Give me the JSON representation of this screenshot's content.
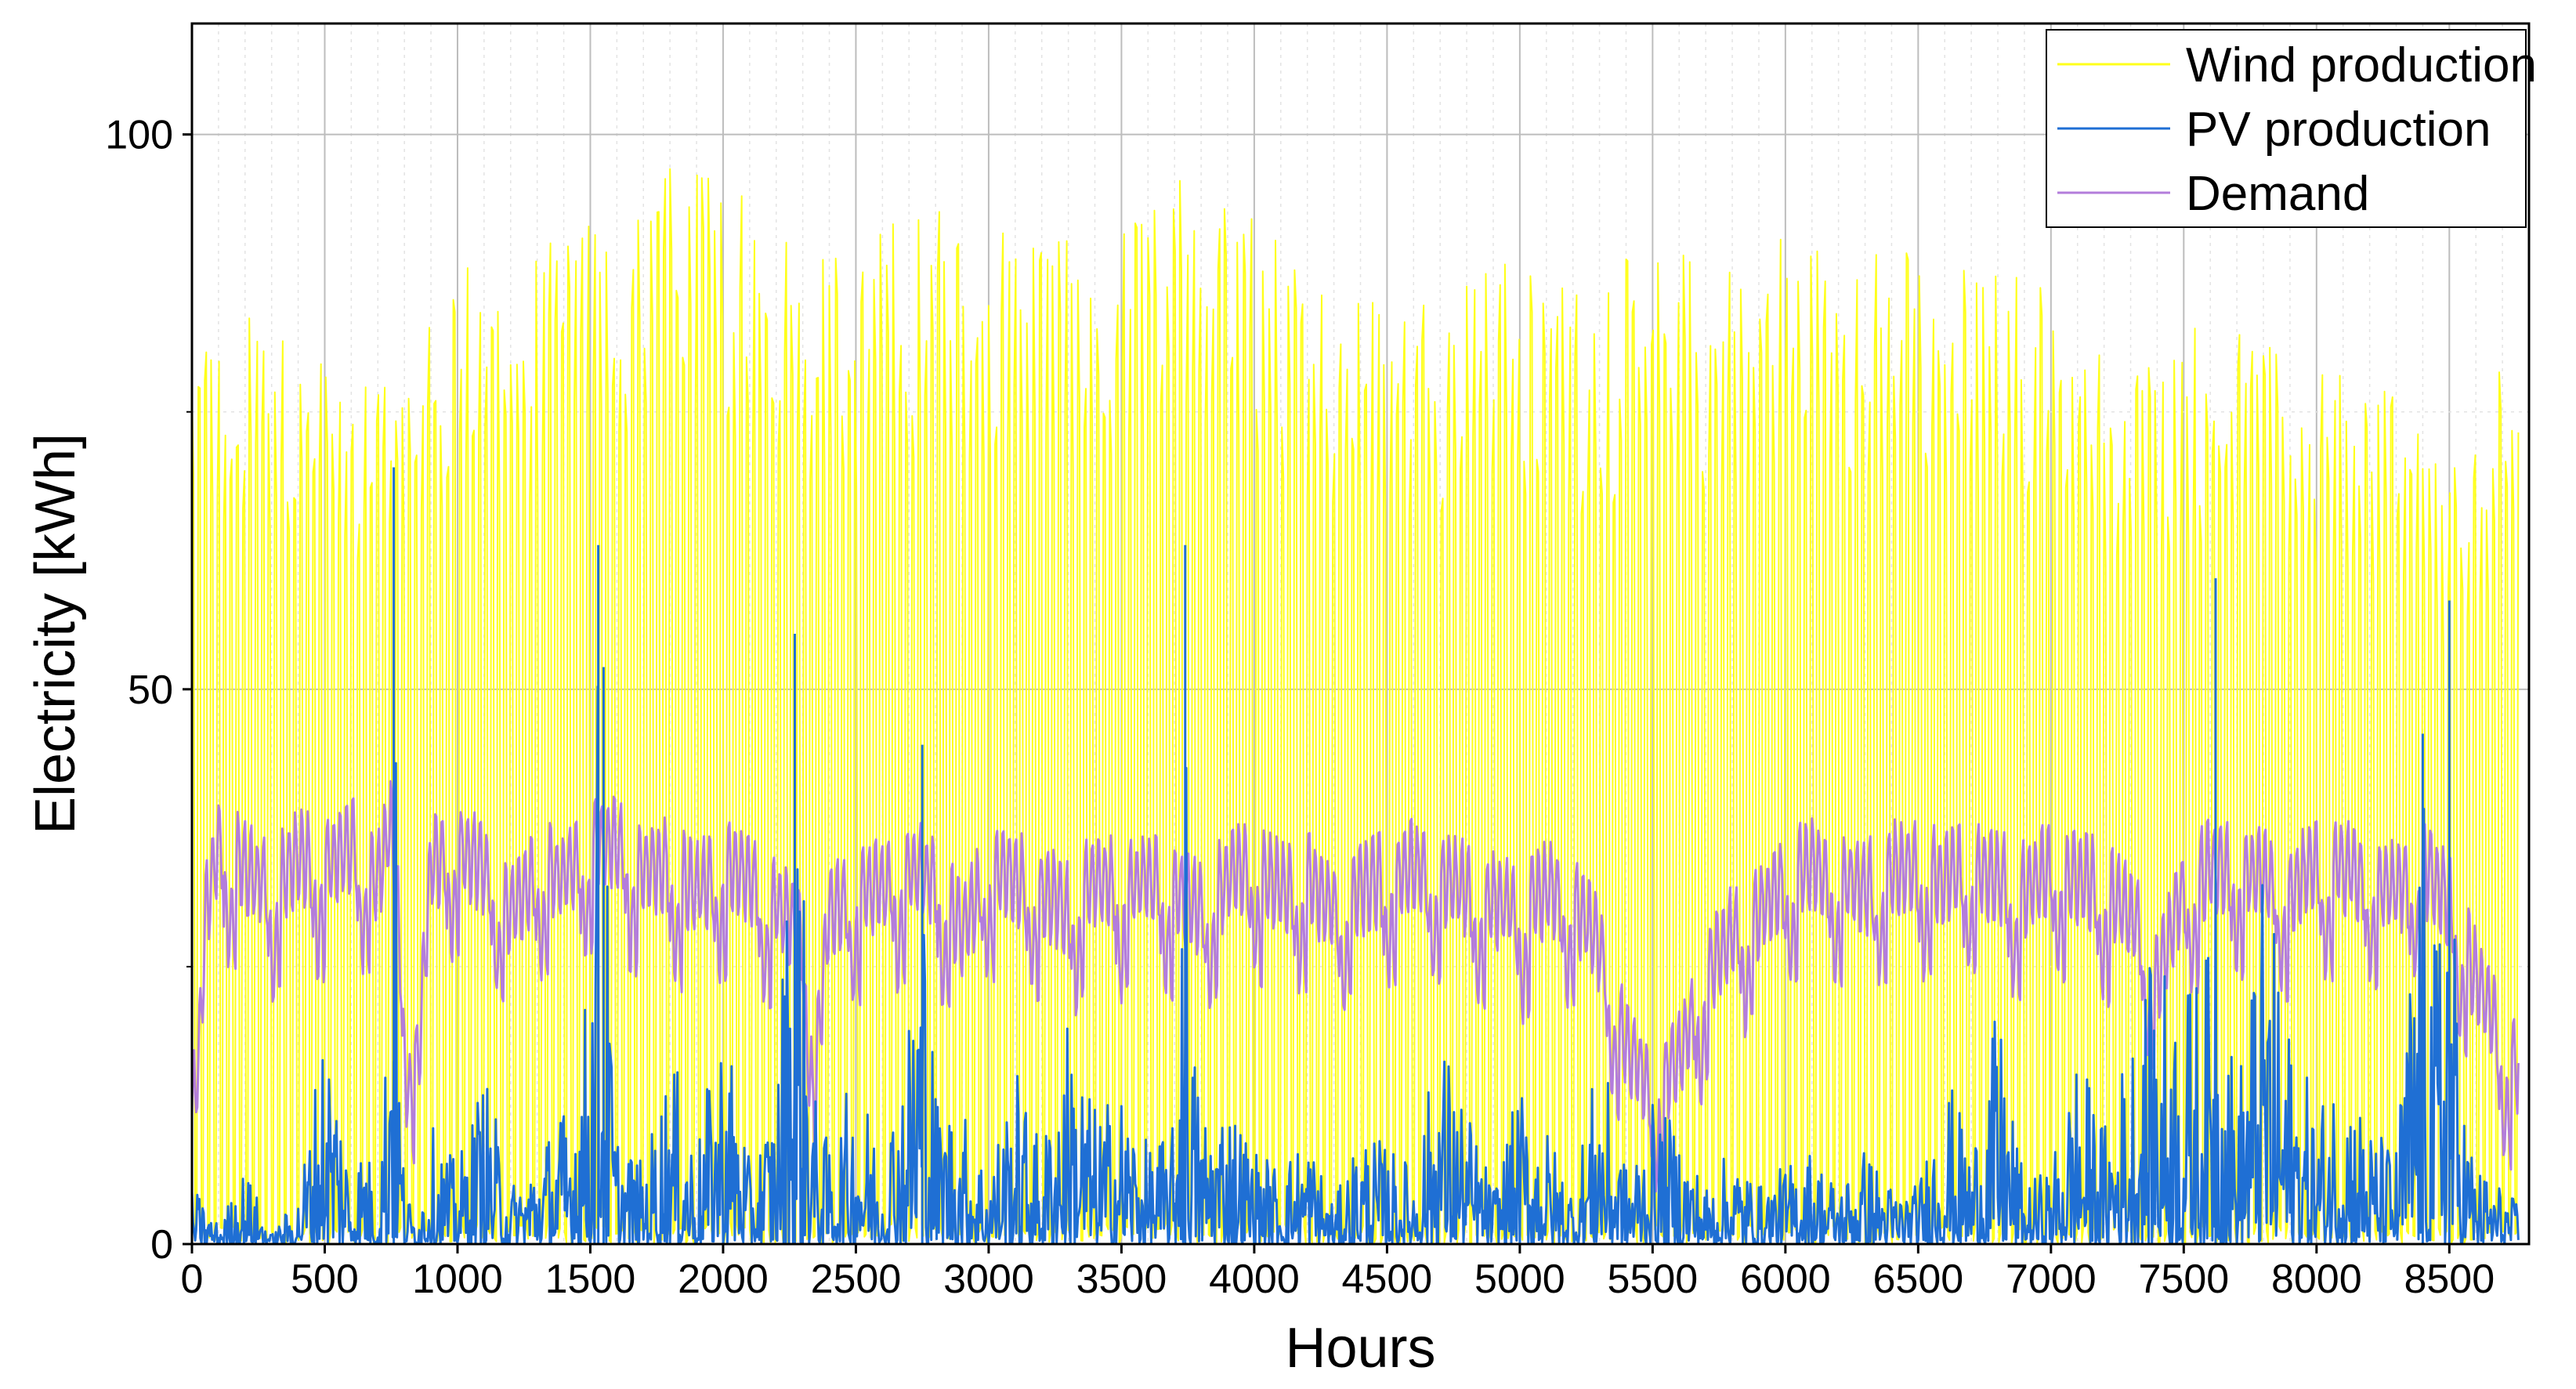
{
  "chart_data": {
    "type": "line",
    "xlabel": "Hours",
    "ylabel": "Electricity [kWh]",
    "xlim": [
      0,
      8800
    ],
    "ylim": [
      0,
      110
    ],
    "x_ticks": [
      0,
      500,
      1000,
      1500,
      2000,
      2500,
      3000,
      3500,
      4000,
      4500,
      5000,
      5500,
      6000,
      6500,
      7000,
      7500,
      8000,
      8500
    ],
    "y_ticks": [
      0,
      50,
      100
    ],
    "y_minor_ticks": [
      25,
      75
    ],
    "grid": true,
    "legend_position": "top-right",
    "series": [
      {
        "name": "Wind production",
        "color": "#ffff1a",
        "style": "daily cycle, ~24 h period; minima near 0",
        "x": [
          0,
          250,
          500,
          750,
          1000,
          1250,
          1500,
          1750,
          2000,
          2250,
          2500,
          2750,
          3000,
          3250,
          3500,
          3750,
          4000,
          4250,
          4500,
          4750,
          5000,
          5250,
          5500,
          5750,
          6000,
          6250,
          6500,
          6750,
          7000,
          7250,
          7500,
          7750,
          8000,
          8250,
          8500,
          8760
        ],
        "values": [
          84,
          84,
          80,
          80,
          91,
          88,
          94,
          98,
          96,
          92,
          90,
          95,
          94,
          93,
          91,
          97,
          93,
          89,
          86,
          88,
          89,
          87,
          91,
          89,
          92,
          90,
          90,
          88,
          88,
          78,
          84,
          82,
          79,
          80,
          70,
          82
        ]
      },
      {
        "name": "PV production",
        "color": "#1f6fd4",
        "style": "hourly noisy series",
        "x": [
          0,
          100,
          200,
          300,
          400,
          450,
          500,
          550,
          600,
          650,
          700,
          740,
          760,
          780,
          800,
          850,
          900,
          1000,
          1100,
          1200,
          1300,
          1400,
          1450,
          1500,
          1530,
          1550,
          1580,
          1600,
          1700,
          1800,
          1900,
          2000,
          2050,
          2100,
          2200,
          2270,
          2300,
          2350,
          2400,
          2500,
          2600,
          2700,
          2750,
          2780,
          2800,
          2900,
          3000,
          3100,
          3200,
          3300,
          3400,
          3500,
          3600,
          3700,
          3740,
          3760,
          3800,
          3900,
          4000,
          4100,
          4200,
          4300,
          4400,
          4500,
          4600,
          4700,
          4800,
          4900,
          5000,
          5100,
          5200,
          5300,
          5400,
          5500,
          5600,
          5700,
          5800,
          5900,
          6000,
          6100,
          6200,
          6300,
          6400,
          6500,
          6600,
          6700,
          6800,
          6900,
          7000,
          7100,
          7200,
          7300,
          7400,
          7500,
          7600,
          7620,
          7640,
          7700,
          7800,
          7900,
          8000,
          8100,
          8200,
          8300,
          8400,
          8450,
          8500,
          8520,
          8540,
          8600,
          8700,
          8760
        ],
        "values": [
          6,
          2,
          8,
          1,
          5,
          14,
          25,
          18,
          7,
          12,
          4,
          28,
          70,
          22,
          6,
          3,
          12,
          8,
          18,
          6,
          10,
          14,
          20,
          28,
          63,
          52,
          22,
          12,
          8,
          20,
          10,
          24,
          18,
          8,
          16,
          55,
          38,
          14,
          10,
          18,
          10,
          24,
          45,
          28,
          16,
          14,
          8,
          18,
          10,
          24,
          14,
          16,
          10,
          12,
          63,
          24,
          14,
          16,
          10,
          8,
          12,
          4,
          12,
          10,
          8,
          22,
          14,
          6,
          16,
          12,
          6,
          20,
          8,
          14,
          12,
          6,
          10,
          6,
          8,
          10,
          6,
          10,
          6,
          6,
          18,
          10,
          24,
          6,
          8,
          20,
          12,
          22,
          30,
          26,
          30,
          60,
          30,
          16,
          38,
          22,
          14,
          20,
          12,
          10,
          46,
          30,
          58,
          32,
          18,
          8,
          6,
          4
        ]
      },
      {
        "name": "Demand",
        "color": "#b37ddb",
        "style": "daily/weekly cycle",
        "x": [
          0,
          25,
          50,
          100,
          200,
          300,
          400,
          500,
          600,
          700,
          750,
          800,
          850,
          900,
          1000,
          1100,
          1200,
          1300,
          1400,
          1500,
          1600,
          1700,
          1800,
          1900,
          2000,
          2100,
          2200,
          2300,
          2350,
          2400,
          2500,
          2600,
          2700,
          2800,
          2900,
          3000,
          3100,
          3200,
          3300,
          3400,
          3500,
          3600,
          3700,
          3800,
          3900,
          4000,
          4100,
          4200,
          4300,
          4400,
          4500,
          4600,
          4700,
          4800,
          4900,
          5000,
          5100,
          5200,
          5300,
          5400,
          5500,
          5600,
          5700,
          5800,
          5900,
          6000,
          6100,
          6200,
          6300,
          6400,
          6500,
          6600,
          6700,
          6800,
          6900,
          7000,
          7100,
          7200,
          7300,
          7400,
          7500,
          7600,
          7700,
          7800,
          7900,
          8000,
          8100,
          8200,
          8300,
          8400,
          8500,
          8600,
          8700,
          8760
        ],
        "values": [
          12,
          16,
          30,
          36,
          34,
          32,
          35,
          34,
          36,
          33,
          38,
          22,
          16,
          34,
          36,
          34,
          30,
          34,
          33,
          36,
          36,
          34,
          34,
          32,
          34,
          33,
          31,
          28,
          16,
          30,
          32,
          32,
          34,
          33,
          28,
          34,
          33,
          32,
          30,
          33,
          32,
          33,
          32,
          30,
          33,
          34,
          32,
          33,
          30,
          32,
          33,
          34,
          33,
          32,
          31,
          30,
          32,
          31,
          27,
          18,
          14,
          17,
          24,
          28,
          30,
          33,
          34,
          33,
          32,
          34,
          34,
          33,
          34,
          33,
          32,
          34,
          33,
          32,
          30,
          24,
          32,
          34,
          34,
          33,
          32,
          34,
          34,
          33,
          32,
          34,
          31,
          24,
          18,
          16
        ]
      }
    ]
  }
}
